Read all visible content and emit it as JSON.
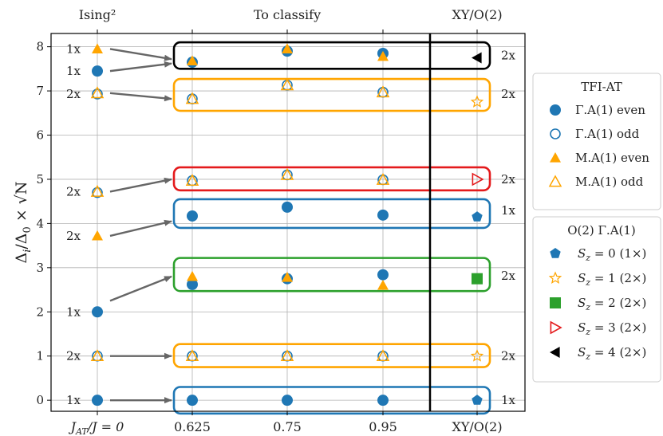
{
  "chart_data": {
    "type": "scatter",
    "title": "",
    "top_labels": [
      "Ising²",
      "To classify",
      "XY/O(2)"
    ],
    "ylabel": "Δ_i/Δ_0 × √N",
    "ylabel_parts": {
      "main": "Δ",
      "sub1": "i",
      "mid": "/Δ",
      "sub2": "0",
      "tail": " × √N"
    },
    "xlabel_first": {
      "main": "J",
      "sub": "AT",
      "tail": "/J = 0"
    },
    "x_categories": [
      "J_AT/J = 0",
      "0.625",
      "0.75",
      "0.95",
      "XY/O(2)"
    ],
    "xtick_labels": [
      "0.625",
      "0.75",
      "0.95",
      "XY/O(2)"
    ],
    "y_ticks": [
      0,
      1,
      2,
      3,
      4,
      5,
      6,
      7,
      8
    ],
    "ylim": [
      -0.25,
      8.3
    ],
    "grid": true,
    "separator_after_category": 3,
    "colors": {
      "blue": "#1f77b4",
      "orange": "#ffa500",
      "green": "#2ca02c",
      "red": "#e41a1c",
      "black": "#000000",
      "arrow": "#666666",
      "grid": "#b0b0b0"
    },
    "series": [
      {
        "name": "Γ.A(1) even",
        "marker": "circle-filled",
        "color": "#1f77b4",
        "points": [
          [
            0,
            0
          ],
          [
            0,
            2
          ],
          [
            0,
            7.45
          ],
          [
            1,
            0
          ],
          [
            1,
            2.62
          ],
          [
            1,
            4.17
          ],
          [
            1,
            7.65
          ],
          [
            2,
            0
          ],
          [
            2,
            2.75
          ],
          [
            2,
            4.37
          ],
          [
            2,
            7.9
          ],
          [
            3,
            0
          ],
          [
            3,
            2.84
          ],
          [
            3,
            4.19
          ],
          [
            3,
            7.85
          ]
        ]
      },
      {
        "name": "Γ.A(1) odd",
        "marker": "circle-open",
        "color": "#1f77b4",
        "points": [
          [
            0,
            1
          ],
          [
            0,
            4.7
          ],
          [
            0,
            6.93
          ],
          [
            1,
            1
          ],
          [
            1,
            4.97
          ],
          [
            1,
            6.82
          ],
          [
            2,
            1
          ],
          [
            2,
            5.1
          ],
          [
            2,
            7.13
          ],
          [
            3,
            1
          ],
          [
            3,
            4.99
          ],
          [
            3,
            6.97
          ]
        ]
      },
      {
        "name": "M.A(1) even",
        "marker": "triangle-filled",
        "color": "#ffa500",
        "points": [
          [
            0,
            3.72
          ],
          [
            0,
            7.95
          ],
          [
            1,
            2.8
          ],
          [
            1,
            7.68
          ],
          [
            2,
            2.78
          ],
          [
            2,
            7.95
          ],
          [
            3,
            2.6
          ],
          [
            3,
            7.78
          ]
        ]
      },
      {
        "name": "M.A(1) odd",
        "marker": "triangle-open",
        "color": "#ffa500",
        "points": [
          [
            0,
            1
          ],
          [
            0,
            4.72
          ],
          [
            0,
            6.95
          ],
          [
            1,
            1
          ],
          [
            1,
            4.97
          ],
          [
            1,
            6.82
          ],
          [
            2,
            1
          ],
          [
            2,
            5.1
          ],
          [
            2,
            7.13
          ],
          [
            3,
            1
          ],
          [
            3,
            4.99
          ],
          [
            3,
            6.97
          ]
        ]
      },
      {
        "name": "S_z = 0 (1×)",
        "marker": "pentagon",
        "color": "#1f77b4",
        "points": [
          [
            4,
            0
          ],
          [
            4,
            4.15
          ]
        ]
      },
      {
        "name": "S_z = 1 (2×)",
        "marker": "star",
        "color": "#ffa500",
        "points": [
          [
            4,
            1
          ],
          [
            4,
            6.75
          ]
        ]
      },
      {
        "name": "S_z = 2 (2×)",
        "marker": "square",
        "color": "#2ca02c",
        "points": [
          [
            4,
            2.75
          ]
        ]
      },
      {
        "name": "S_z = 3 (2×)",
        "marker": "triangle-right-open",
        "color": "#e41a1c",
        "points": [
          [
            4,
            5
          ]
        ]
      },
      {
        "name": "S_z = 4 (2×)",
        "marker": "triangle-left",
        "color": "#000000",
        "points": [
          [
            4,
            7.75
          ]
        ]
      }
    ],
    "boxes": [
      {
        "y0": -0.3,
        "y1": 0.3,
        "color": "#1f77b4"
      },
      {
        "y0": 0.75,
        "y1": 1.27,
        "color": "#ffa500"
      },
      {
        "y0": 2.47,
        "y1": 3.22,
        "color": "#2ca02c"
      },
      {
        "y0": 3.9,
        "y1": 4.55,
        "color": "#1f77b4"
      },
      {
        "y0": 4.75,
        "y1": 5.27,
        "color": "#e41a1c"
      },
      {
        "y0": 6.55,
        "y1": 7.27,
        "color": "#ffa500"
      },
      {
        "y0": 7.5,
        "y1": 8.1,
        "color": "#000000"
      }
    ],
    "arrows": [
      [
        0,
        0
      ],
      [
        0,
        1
      ],
      [
        0,
        2.25
      ],
      [
        0,
        3.72
      ],
      [
        0,
        4.72
      ],
      [
        0,
        6.95
      ],
      [
        0,
        7.45
      ],
      [
        0,
        7.95
      ]
    ],
    "arrow_targets": [
      0,
      1,
      2.8,
      4.05,
      5.0,
      6.82,
      7.62,
      7.72
    ],
    "left_labels": [
      {
        "y": 0,
        "text": "1x"
      },
      {
        "y": 1,
        "text": "2x"
      },
      {
        "y": 2,
        "text": "1x"
      },
      {
        "y": 3.72,
        "text": "2x"
      },
      {
        "y": 4.72,
        "text": "2x"
      },
      {
        "y": 6.93,
        "text": "2x"
      },
      {
        "y": 7.45,
        "text": "1x"
      },
      {
        "y": 7.95,
        "text": "1x"
      }
    ],
    "right_labels": [
      {
        "y": 0,
        "text": "1x"
      },
      {
        "y": 1,
        "text": "2x"
      },
      {
        "y": 2.82,
        "text": "2x"
      },
      {
        "y": 4.3,
        "text": "1x"
      },
      {
        "y": 5,
        "text": "2x"
      },
      {
        "y": 6.93,
        "text": "2x"
      },
      {
        "y": 7.8,
        "text": "2x"
      }
    ],
    "legends": [
      {
        "title": "TFI-AT",
        "placement": "upper-right",
        "entries": [
          {
            "marker": "circle-filled",
            "color": "#1f77b4",
            "label": "Γ.A(1) even"
          },
          {
            "marker": "circle-open",
            "color": "#1f77b4",
            "label": "Γ.A(1) odd"
          },
          {
            "marker": "triangle-filled",
            "color": "#ffa500",
            "label": "M.A(1) even"
          },
          {
            "marker": "triangle-open",
            "color": "#ffa500",
            "label": "M.A(1) odd"
          }
        ]
      },
      {
        "title": "O(2) Γ.A(1)",
        "placement": "lower-right",
        "entries": [
          {
            "marker": "pentagon",
            "color": "#1f77b4",
            "label": "S_z = 0 (1×)",
            "sub": "z",
            "pre": "S",
            "post": " = 0 (1×)"
          },
          {
            "marker": "star",
            "color": "#ffa500",
            "label": "S_z = 1 (2×)",
            "sub": "z",
            "pre": "S",
            "post": " = 1 (2×)"
          },
          {
            "marker": "square",
            "color": "#2ca02c",
            "label": "S_z = 2 (2×)",
            "sub": "z",
            "pre": "S",
            "post": " = 2 (2×)"
          },
          {
            "marker": "triangle-right-open",
            "color": "#e41a1c",
            "label": "S_z = 3 (2×)",
            "sub": "z",
            "pre": "S",
            "post": " = 3 (2×)"
          },
          {
            "marker": "triangle-left",
            "color": "#000000",
            "label": "S_z = 4 (2×)",
            "sub": "z",
            "pre": "S",
            "post": " = 4 (2×)"
          }
        ]
      }
    ]
  }
}
